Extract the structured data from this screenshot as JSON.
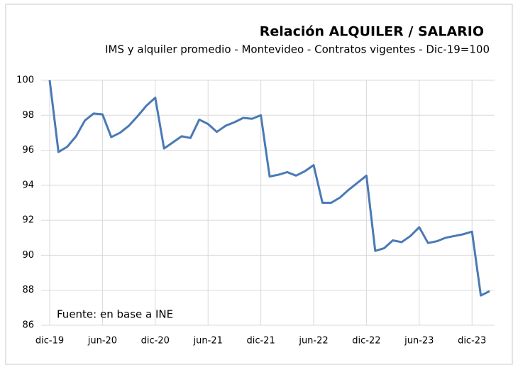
{
  "chart_data": {
    "type": "line",
    "title": "Relación  ALQUILER / SALARIO",
    "subtitle": "IMS y alquiler promedio - Montevideo - Contratos vigentes - Dic-19=100",
    "annotation": "Fuente: en base a INE",
    "categories": [
      "dic-19",
      null,
      null,
      null,
      null,
      null,
      "jun-20",
      null,
      null,
      null,
      null,
      null,
      "dic-20",
      null,
      null,
      null,
      null,
      null,
      "jun-21",
      null,
      null,
      null,
      null,
      null,
      "dic-21",
      null,
      null,
      null,
      null,
      null,
      "jun-22",
      null,
      null,
      null,
      null,
      null,
      "dic-22",
      null,
      null,
      null,
      null,
      null,
      "jun-23",
      null,
      null,
      null,
      null,
      null,
      "dic-23",
      null,
      null
    ],
    "series": [
      {
        "name": "Relación alquiler / salario",
        "color": "#4a7ab5",
        "values": [
          100,
          95.9,
          96.2,
          96.8,
          97.7,
          98.1,
          98.05,
          96.75,
          97.0,
          97.4,
          97.95,
          98.55,
          99.0,
          96.1,
          96.45,
          96.8,
          96.7,
          97.75,
          97.5,
          97.05,
          97.4,
          97.6,
          97.85,
          97.8,
          98.0,
          94.5,
          94.6,
          94.75,
          94.55,
          94.8,
          95.15,
          93.0,
          93.0,
          93.3,
          93.75,
          94.15,
          94.55,
          90.25,
          90.4,
          90.85,
          90.75,
          91.1,
          91.6,
          90.7,
          90.8,
          91.0,
          91.1,
          91.2,
          91.35,
          87.7,
          87.95
        ]
      }
    ],
    "ylim": [
      86,
      100
    ],
    "yticks": [
      86,
      88,
      90,
      92,
      94,
      96,
      98,
      100
    ],
    "grid": true
  }
}
